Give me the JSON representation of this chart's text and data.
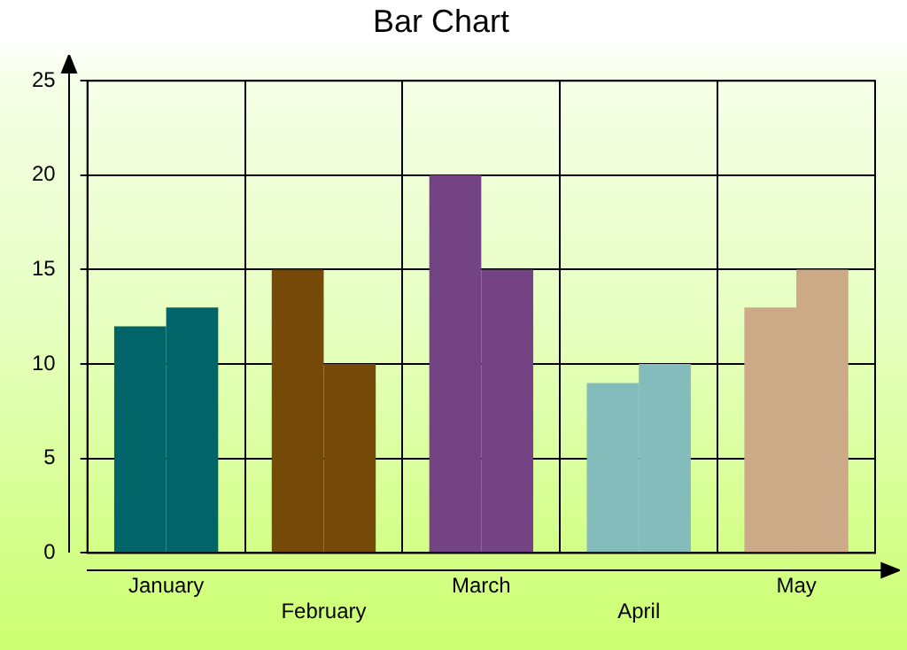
{
  "chart_data": {
    "type": "bar",
    "title": "Bar Chart",
    "categories": [
      "January",
      "February",
      "March",
      "April",
      "May"
    ],
    "series": [
      {
        "colors": [
          "#006468",
          "#754a08",
          "#744384",
          "#84bcbc",
          "#ccaa88"
        ],
        "values": [
          12,
          15,
          20,
          9,
          13
        ]
      },
      {
        "colors": [
          "#006468",
          "#754a08",
          "#744384",
          "#84bcbc",
          "#ccaa88"
        ],
        "values": [
          13,
          10,
          15,
          10,
          15
        ]
      }
    ],
    "ylim": [
      0,
      25
    ],
    "yticks": [
      0,
      5,
      10,
      15,
      20,
      25
    ],
    "grid": true,
    "legend": false
  }
}
